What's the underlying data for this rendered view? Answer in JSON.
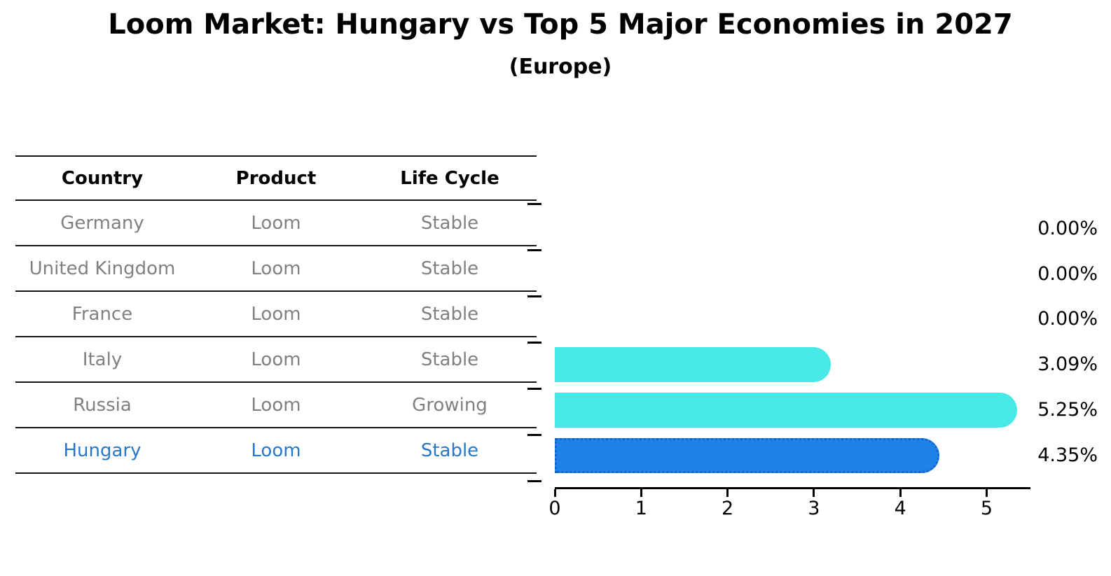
{
  "title": "Loom Market: Hungary vs Top 5 Major Economies in 2027",
  "subtitle": "(Europe)",
  "table": {
    "headers": [
      "Country",
      "Product",
      "Life Cycle"
    ],
    "rows": [
      {
        "country": "Germany",
        "product": "Loom",
        "life_cycle": "Stable",
        "highlight": false
      },
      {
        "country": "United Kingdom",
        "product": "Loom",
        "life_cycle": "Stable",
        "highlight": false
      },
      {
        "country": "France",
        "product": "Loom",
        "life_cycle": "Stable",
        "highlight": false
      },
      {
        "country": "Italy",
        "product": "Loom",
        "life_cycle": "Stable",
        "highlight": false
      },
      {
        "country": "Russia",
        "product": "Loom",
        "life_cycle": "Growing",
        "highlight": false
      },
      {
        "country": "Hungary",
        "product": "Loom",
        "life_cycle": "Stable",
        "highlight": true
      }
    ]
  },
  "chart_data": {
    "type": "bar",
    "orientation": "horizontal",
    "title": "Loom Market: Hungary vs Top 5 Major Economies in 2027",
    "subtitle": "(Europe)",
    "categories": [
      "Germany",
      "United Kingdom",
      "France",
      "Italy",
      "Russia",
      "Hungary"
    ],
    "values": [
      0.0,
      0.0,
      0.0,
      3.09,
      5.25,
      4.35
    ],
    "value_labels": [
      "0.00%",
      "0.00%",
      "0.00%",
      "3.09%",
      "5.25%",
      "4.35%"
    ],
    "highlight_index": 5,
    "xticks": [
      0,
      1,
      2,
      3,
      4,
      5
    ],
    "xlim": [
      0,
      5.5
    ],
    "grid": false,
    "legend": "none",
    "colors": {
      "bar": "#46E8E8",
      "highlight_bar": "#1E82E8",
      "highlight_bar_border": "#1362CE",
      "highlight_text": "#2878C8",
      "muted_text": "#808080",
      "axis": "#000000"
    }
  }
}
